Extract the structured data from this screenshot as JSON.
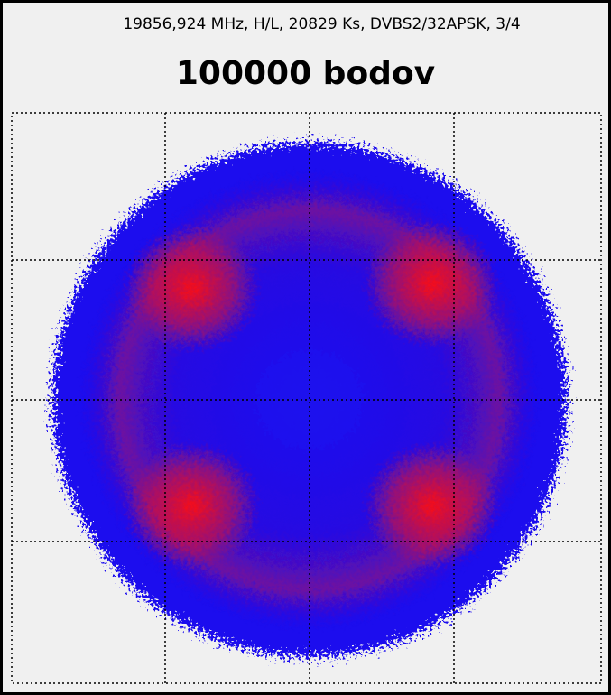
{
  "header": {
    "info": "19856,924 MHz, H/L, 20829 Ks, DVBS2/32APSK, 3/4",
    "title": "100000 bodov"
  }
}
